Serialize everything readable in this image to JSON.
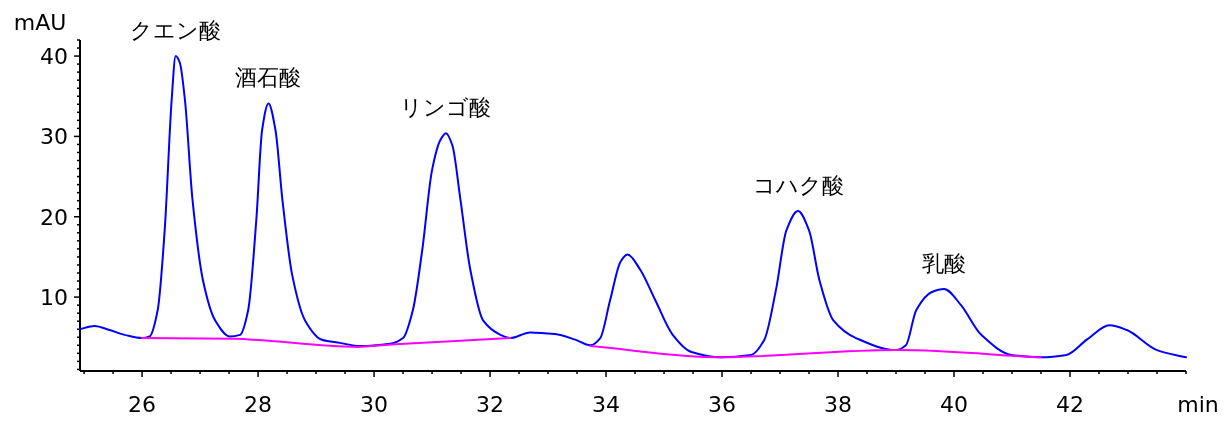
{
  "chart_data": {
    "type": "line",
    "xlabel": "min",
    "ylabel": "mAU",
    "xlim": [
      24.93,
      44
    ],
    "ylim": [
      0.8,
      42
    ],
    "grid": false,
    "marker": "none",
    "line_style": "solid",
    "xticks": [
      {
        "value": 25,
        "label": null
      },
      {
        "value": 25.5,
        "label": null
      },
      26,
      {
        "value": 26.5,
        "label": null
      },
      {
        "value": 27,
        "label": null
      },
      {
        "value": 27.5,
        "label": null
      },
      28,
      {
        "value": 28.5,
        "label": null
      },
      {
        "value": 29,
        "label": null
      },
      {
        "value": 29.5,
        "label": null
      },
      30,
      {
        "value": 30.5,
        "label": null
      },
      {
        "value": 31,
        "label": null
      },
      {
        "value": 31.5,
        "label": null
      },
      32,
      {
        "value": 32.5,
        "label": null
      },
      {
        "value": 33,
        "label": null
      },
      {
        "value": 33.5,
        "label": null
      },
      34,
      {
        "value": 34.5,
        "label": null
      },
      {
        "value": 35,
        "label": null
      },
      {
        "value": 35.5,
        "label": null
      },
      36,
      {
        "value": 36.5,
        "label": null
      },
      {
        "value": 37,
        "label": null
      },
      {
        "value": 37.5,
        "label": null
      },
      38,
      {
        "value": 38.5,
        "label": null
      },
      {
        "value": 39,
        "label": null
      },
      {
        "value": 39.5,
        "label": null
      },
      40,
      {
        "value": 40.5,
        "label": null
      },
      {
        "value": 41,
        "label": null
      },
      {
        "value": 41.5,
        "label": null
      },
      42,
      {
        "value": 42.5,
        "label": null
      },
      {
        "value": 43,
        "label": null
      },
      {
        "value": 43.5,
        "label": null
      },
      {
        "value": 44,
        "label": null
      }
    ],
    "yticks": [
      {
        "value": 1,
        "label": null
      },
      {
        "value": 2,
        "label": null
      },
      {
        "value": 3,
        "label": null
      },
      {
        "value": 4,
        "label": null
      },
      {
        "value": 5,
        "label": null
      },
      {
        "value": 6,
        "label": null
      },
      {
        "value": 7,
        "label": null
      },
      {
        "value": 8,
        "label": null
      },
      {
        "value": 9,
        "label": null
      },
      10,
      {
        "value": 11,
        "label": null
      },
      {
        "value": 12,
        "label": null
      },
      {
        "value": 13,
        "label": null
      },
      {
        "value": 14,
        "label": null
      },
      {
        "value": 15,
        "label": null
      },
      {
        "value": 16,
        "label": null
      },
      {
        "value": 17,
        "label": null
      },
      {
        "value": 18,
        "label": null
      },
      {
        "value": 19,
        "label": null
      },
      20,
      {
        "value": 21,
        "label": null
      },
      {
        "value": 22,
        "label": null
      },
      {
        "value": 23,
        "label": null
      },
      {
        "value": 24,
        "label": null
      },
      {
        "value": 25,
        "label": null
      },
      {
        "value": 26,
        "label": null
      },
      {
        "value": 27,
        "label": null
      },
      {
        "value": 28,
        "label": null
      },
      {
        "value": 29,
        "label": null
      },
      30,
      {
        "value": 31,
        "label": null
      },
      {
        "value": 32,
        "label": null
      },
      {
        "value": 33,
        "label": null
      },
      {
        "value": 34,
        "label": null
      },
      {
        "value": 35,
        "label": null
      },
      {
        "value": 36,
        "label": null
      },
      {
        "value": 37,
        "label": null
      },
      {
        "value": 38,
        "label": null
      },
      {
        "value": 39,
        "label": null
      },
      40,
      {
        "value": 41,
        "label": null
      },
      {
        "value": 42,
        "label": null
      }
    ],
    "series": [
      {
        "color": "#0000ff",
        "x": [
          24.93,
          25.18,
          25.44,
          25.7,
          26.0,
          26.13,
          26.27,
          26.39,
          26.51,
          26.58,
          26.65,
          26.74,
          26.87,
          27.05,
          27.26,
          27.51,
          27.69,
          27.83,
          27.97,
          28.07,
          28.18,
          28.3,
          28.42,
          28.59,
          28.81,
          29.1,
          29.41,
          29.76,
          30.28,
          30.5,
          30.67,
          30.83,
          31.0,
          31.14,
          31.24,
          31.35,
          31.49,
          31.66,
          31.88,
          32.18,
          32.35,
          32.69,
          33.12,
          33.47,
          33.73,
          33.9,
          34.07,
          34.25,
          34.37,
          34.59,
          34.85,
          35.15,
          35.46,
          35.98,
          36.5,
          36.73,
          36.93,
          37.11,
          37.31,
          37.5,
          37.68,
          37.92,
          38.31,
          39.0,
          39.17,
          39.35,
          39.61,
          39.83,
          40.12,
          40.47,
          40.99,
          41.5,
          41.94,
          42.29,
          42.68,
          42.98,
          43.5,
          44.0
        ],
        "values": [
          6.0,
          6.4,
          5.9,
          5.3,
          4.9,
          5.1,
          8.4,
          18.3,
          34.5,
          40.0,
          39.2,
          34.5,
          22.1,
          12.1,
          7.1,
          5.1,
          5.3,
          8.4,
          19.6,
          30.8,
          34.1,
          30.8,
          22.1,
          12.7,
          7.1,
          4.7,
          4.3,
          3.9,
          4.2,
          4.9,
          8.4,
          15.8,
          25.8,
          29.5,
          30.4,
          28.9,
          22.1,
          13.4,
          7.1,
          5.3,
          4.9,
          5.6,
          5.4,
          4.7,
          4.0,
          4.9,
          9.6,
          14.4,
          15.3,
          13.4,
          9.6,
          5.3,
          3.2,
          2.5,
          2.8,
          4.7,
          10.9,
          18.3,
          20.7,
          18.3,
          12.1,
          7.1,
          4.9,
          3.4,
          4.0,
          8.4,
          10.6,
          11.0,
          9.0,
          5.3,
          2.8,
          2.5,
          2.8,
          4.7,
          6.5,
          5.9,
          3.4,
          2.5
        ]
      },
      {
        "color": "#ff00ff",
        "x": [
          26.0,
          27.57,
          29.71,
          30.29,
          32.35,
          33.0,
          33.73,
          35.97,
          36.47,
          39.01,
          41.49
        ],
        "values": [
          4.9,
          4.8,
          3.8,
          4.1,
          4.9,
          null,
          3.9,
          2.5,
          2.6,
          3.4,
          2.5
        ]
      }
    ],
    "annotations": [
      {
        "text": "クエン酸",
        "x": 26.58,
        "y": 40.0
      },
      {
        "text": "酒石酸",
        "x": 28.18,
        "y": 34.1
      },
      {
        "text": "リンゴ酸",
        "x": 31.24,
        "y": 30.4
      },
      {
        "text": "コハク酸",
        "x": 37.31,
        "y": 20.7
      },
      {
        "text": "乳酸",
        "x": 39.83,
        "y": 11.0
      }
    ]
  }
}
